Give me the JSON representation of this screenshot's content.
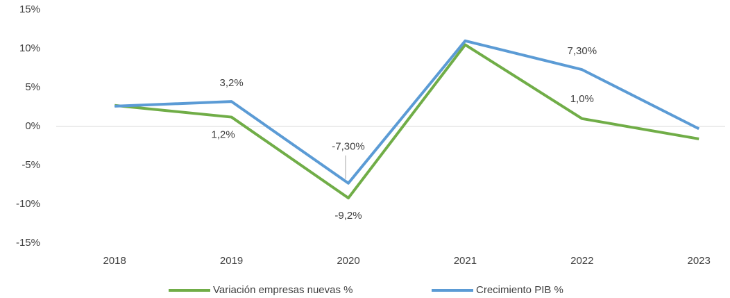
{
  "chart_data": {
    "type": "line",
    "categories": [
      "2018",
      "2019",
      "2020",
      "2021",
      "2022",
      "2023"
    ],
    "series": [
      {
        "name": "Variación empresas nuevas %",
        "color": "#70ad47",
        "values": [
          2.7,
          1.2,
          -9.2,
          10.5,
          1.0,
          -1.6
        ],
        "value_labels": [
          null,
          "1,2%",
          "-9,2%",
          null,
          "1,0%",
          null
        ]
      },
      {
        "name": "Crecimiento PIB %",
        "color": "#5b9bd5",
        "values": [
          2.6,
          3.2,
          -7.3,
          11.0,
          7.3,
          -0.3
        ],
        "value_labels": [
          null,
          "3,2%",
          "-7,30%",
          null,
          "7,30%",
          null
        ]
      }
    ],
    "ylim": [
      -15,
      15
    ],
    "yticks": [
      {
        "value": -15,
        "label": "-15%"
      },
      {
        "value": -10,
        "label": "-10%"
      },
      {
        "value": -5,
        "label": "-5%"
      },
      {
        "value": 0,
        "label": "0%"
      },
      {
        "value": 5,
        "label": "5%"
      },
      {
        "value": 10,
        "label": "10%"
      },
      {
        "value": 15,
        "label": "15%"
      }
    ],
    "legend": "bottom"
  }
}
